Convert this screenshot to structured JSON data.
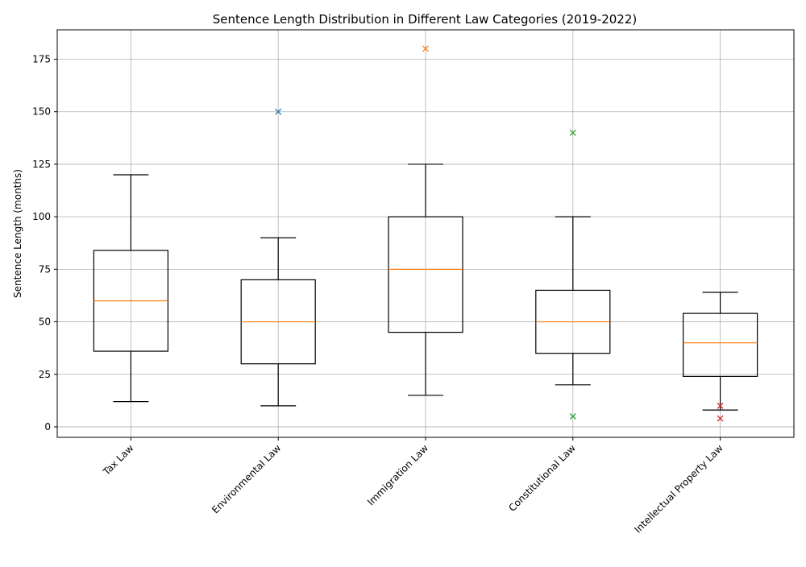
{
  "chart_data": {
    "type": "box",
    "title": "Sentence Length Distribution in Different Law Categories (2019-2022)",
    "xlabel": "",
    "ylabel": "Sentence Length (months)",
    "ylim": [
      -5,
      189
    ],
    "yticks": [
      0,
      25,
      50,
      75,
      100,
      125,
      150,
      175
    ],
    "grid": true,
    "categories": [
      "Tax Law",
      "Environmental Law",
      "Immigration Law",
      "Constitutional Law",
      "Intellectual Property Law"
    ],
    "boxes": [
      {
        "category": "Tax Law",
        "whisker_low": 12,
        "q1": 36,
        "median": 60,
        "q3": 84,
        "whisker_high": 120,
        "outliers": []
      },
      {
        "category": "Environmental Law",
        "whisker_low": 10,
        "q1": 30,
        "median": 50,
        "q3": 70,
        "whisker_high": 90,
        "outliers": [
          150
        ]
      },
      {
        "category": "Immigration Law",
        "whisker_low": 15,
        "q1": 45,
        "median": 75,
        "q3": 100,
        "whisker_high": 125,
        "outliers": [
          180
        ]
      },
      {
        "category": "Constitutional Law",
        "whisker_low": 20,
        "q1": 35,
        "median": 50,
        "q3": 65,
        "whisker_high": 100,
        "outliers": [
          140,
          5
        ]
      },
      {
        "category": "Intellectual Property Law",
        "whisker_low": 8,
        "q1": 24,
        "median": 40,
        "q3": 54,
        "whisker_high": 64,
        "outliers": [
          10,
          4
        ]
      }
    ],
    "outlier_colors": [
      "#1f77b4",
      "#1f77b4",
      "#ff7f0e",
      "#2ca02c",
      "#d62728"
    ],
    "median_color": "#ff7f0e",
    "box_color": "#000000",
    "grid_color": "#b0b0b0"
  }
}
